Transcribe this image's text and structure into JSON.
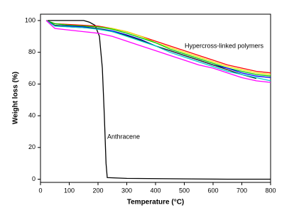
{
  "chart_data": {
    "type": "line",
    "x_label": "Temperature (°C)",
    "y_label": "Weight loss (%)",
    "annotations": [
      "Hypercross-linked polymers",
      "Anthracene"
    ],
    "xlim": [
      0,
      800
    ],
    "ylim": [
      -2,
      104
    ],
    "xticks": [
      0,
      100,
      200,
      300,
      400,
      500,
      600,
      700,
      800
    ],
    "yticks": [
      0,
      20,
      40,
      60,
      80,
      100
    ],
    "series": [
      {
        "color": "#000000",
        "x": [
          25,
          150,
          170,
          190,
          205,
          215,
          222,
          228,
          232,
          300,
          450,
          650,
          800
        ],
        "values": [
          100,
          100,
          99,
          97,
          90,
          70,
          40,
          10,
          1,
          0.5,
          0.3,
          0,
          0
        ]
      },
      {
        "color": "#ff0000",
        "x": [
          20,
          50,
          100,
          150,
          200,
          250,
          300,
          350,
          400,
          450,
          500,
          550,
          600,
          650,
          700,
          750,
          800
        ],
        "values": [
          100,
          98,
          97.5,
          97,
          96.5,
          95,
          93,
          90,
          87,
          84,
          81,
          78,
          75,
          72,
          70,
          68,
          67
        ]
      },
      {
        "color": "#e6e600",
        "x": [
          20,
          50,
          100,
          150,
          200,
          250,
          300,
          350,
          400,
          450,
          500,
          550,
          600,
          650,
          700,
          750,
          800
        ],
        "values": [
          100,
          98,
          97,
          96.5,
          96,
          95,
          93,
          90,
          86,
          83,
          80,
          77,
          74,
          71,
          69,
          67,
          66
        ]
      },
      {
        "color": "#00cc00",
        "x": [
          20,
          50,
          100,
          150,
          200,
          250,
          300,
          350,
          400,
          450,
          500,
          550,
          600,
          650,
          700,
          750,
          800
        ],
        "values": [
          100,
          98,
          97,
          96.5,
          96,
          94.5,
          92,
          89,
          86,
          82,
          79,
          76,
          73,
          70,
          68,
          66,
          65
        ]
      },
      {
        "color": "#0000ff",
        "x": [
          20,
          50,
          100,
          150,
          200,
          250,
          300,
          350,
          400,
          450,
          500,
          550,
          600,
          650,
          700,
          750,
          800
        ],
        "values": [
          100,
          97,
          96.5,
          96,
          95,
          93.5,
          91,
          88,
          84,
          81,
          78,
          75,
          72,
          70,
          67,
          65,
          64
        ]
      },
      {
        "color": "#222222",
        "x": [
          20,
          50,
          100,
          150,
          200,
          250,
          300,
          350,
          400,
          450,
          500,
          550,
          600,
          650,
          700,
          750,
          800
        ],
        "values": [
          100,
          97,
          96,
          95.5,
          95,
          93,
          90.5,
          87.5,
          84,
          81,
          78,
          75,
          72,
          69,
          66,
          63.5,
          null
        ]
      },
      {
        "color": "#00cccc",
        "x": [
          20,
          50,
          100,
          150,
          200,
          250,
          300,
          350,
          400,
          450,
          500,
          550,
          600,
          650,
          700,
          750,
          800
        ],
        "values": [
          100,
          96.5,
          96,
          95.5,
          94.5,
          93,
          90,
          87,
          84,
          80,
          77,
          74,
          71,
          68,
          66,
          64,
          62
        ]
      },
      {
        "color": "#ff00ff",
        "x": [
          20,
          50,
          100,
          150,
          200,
          250,
          300,
          350,
          400,
          450,
          500,
          550,
          600,
          650,
          700,
          750,
          800
        ],
        "values": [
          100,
          95,
          94,
          93,
          92,
          90,
          87,
          84,
          81,
          78,
          75,
          72,
          70,
          67,
          64,
          62,
          61
        ]
      }
    ]
  }
}
